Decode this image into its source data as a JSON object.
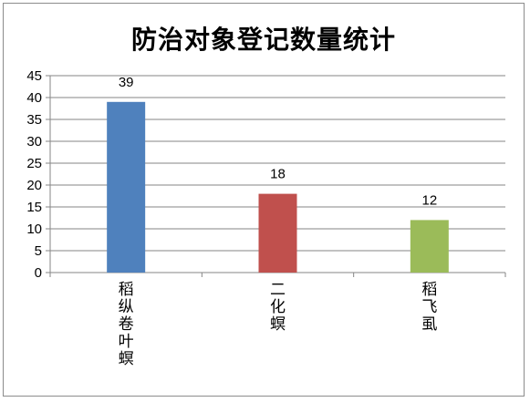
{
  "chart_data": {
    "type": "bar",
    "title": "防治对象登记数量统计",
    "categories": [
      "稻纵卷叶螟",
      "二化螟",
      "稻飞虱"
    ],
    "values": [
      39,
      18,
      12
    ],
    "colors": [
      "#4f81bd",
      "#c0504d",
      "#9bbb59"
    ],
    "ylim": [
      0,
      45
    ],
    "yticks": [
      0,
      5,
      10,
      15,
      20,
      25,
      30,
      35,
      40,
      45
    ],
    "grid": true,
    "data_labels": true,
    "legend": "none",
    "xlabel": "",
    "ylabel": ""
  }
}
